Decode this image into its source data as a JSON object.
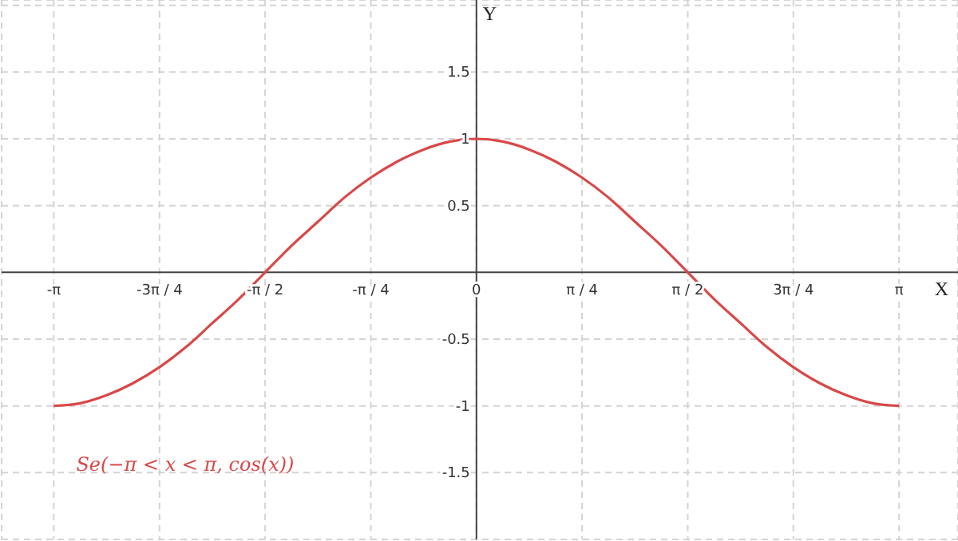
{
  "chart_data": {
    "type": "line",
    "xlabel": "X",
    "ylabel": "Y",
    "x": [
      -3.142,
      -2.945,
      -2.749,
      -2.553,
      -2.356,
      -2.16,
      -1.963,
      -1.767,
      -1.571,
      -1.374,
      -1.178,
      -0.982,
      -0.785,
      -0.589,
      -0.393,
      -0.196,
      0,
      0.196,
      0.393,
      0.589,
      0.785,
      0.982,
      1.178,
      1.374,
      1.571,
      1.767,
      1.963,
      2.16,
      2.356,
      2.553,
      2.749,
      2.945,
      3.142
    ],
    "series": [
      {
        "color": "#d94848",
        "values": [
          -1,
          -0.98,
          -0.92,
          -0.83,
          -0.71,
          -0.56,
          -0.38,
          -0.2,
          0,
          0.2,
          0.38,
          0.56,
          0.71,
          0.83,
          0.92,
          0.98,
          1,
          0.98,
          0.92,
          0.83,
          0.71,
          0.56,
          0.38,
          0.2,
          0,
          -0.2,
          -0.38,
          -0.56,
          -0.71,
          -0.83,
          -0.92,
          -0.98,
          -1
        ]
      }
    ],
    "xlim": [
      -3.53,
      3.58
    ],
    "ylim": [
      -2.0,
      2.04
    ],
    "xticks": [
      {
        "value": -3.142,
        "label": "-π"
      },
      {
        "value": -2.356,
        "label": "-3π / 4"
      },
      {
        "value": -1.571,
        "label": "-π / 2"
      },
      {
        "value": -0.785,
        "label": "-π / 4"
      },
      0,
      {
        "value": 0.785,
        "label": "π / 4"
      },
      {
        "value": 1.571,
        "label": "π / 2"
      },
      {
        "value": 2.356,
        "label": "3π / 4"
      },
      {
        "value": 3.142,
        "label": "π"
      }
    ],
    "yticks": [
      -1.5,
      -1,
      -0.5,
      0.5,
      1,
      1.5,
      {
        "value": 2,
        "label": null
      }
    ],
    "grid": true,
    "marker": "none",
    "line_style": "solid",
    "annotations": [
      "Se(−π < x < π, cos(x))"
    ]
  }
}
